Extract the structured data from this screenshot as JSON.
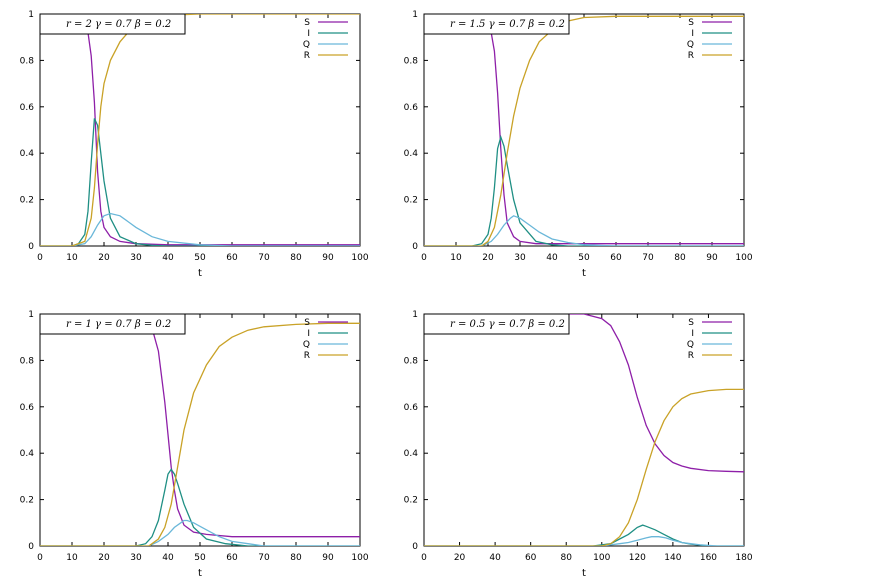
{
  "figure": {
    "panel_count": 4
  },
  "colors": {
    "S": "#8e1fa8",
    "I": "#1f8f84",
    "Q": "#6ab7d9",
    "R": "#c9a227"
  },
  "chart_data": [
    {
      "type": "line",
      "title": "r = 2 γ = 0.7 β = 0.2",
      "xlabel": "t",
      "ylabel": "",
      "xlim": [
        0,
        100
      ],
      "ylim": [
        0,
        1
      ],
      "xticks": [
        0,
        10,
        20,
        30,
        40,
        50,
        60,
        70,
        80,
        90,
        100
      ],
      "yticks": [
        0,
        0.2,
        0.4,
        0.6,
        0.8,
        1
      ],
      "grid": false,
      "legend": "top-right",
      "series": [
        {
          "name": "S",
          "x": [
            0,
            10,
            12,
            14,
            15,
            16,
            17,
            18,
            19,
            20,
            22,
            25,
            30,
            40,
            60,
            100
          ],
          "y": [
            1,
            1,
            0.99,
            0.96,
            0.92,
            0.82,
            0.62,
            0.32,
            0.15,
            0.08,
            0.04,
            0.02,
            0.01,
            0.005,
            0.005,
            0.005
          ]
        },
        {
          "name": "I",
          "x": [
            0,
            10,
            12,
            14,
            15,
            16,
            17,
            18,
            19,
            20,
            22,
            25,
            30,
            35,
            40,
            100
          ],
          "y": [
            0,
            0,
            0.01,
            0.05,
            0.15,
            0.36,
            0.55,
            0.52,
            0.4,
            0.28,
            0.12,
            0.04,
            0.01,
            0.003,
            0,
            0
          ]
        },
        {
          "name": "Q",
          "x": [
            0,
            10,
            14,
            16,
            18,
            20,
            22,
            25,
            30,
            35,
            40,
            50,
            60,
            100
          ],
          "y": [
            0,
            0,
            0.01,
            0.04,
            0.09,
            0.13,
            0.14,
            0.13,
            0.08,
            0.04,
            0.02,
            0.005,
            0,
            0
          ]
        },
        {
          "name": "R",
          "x": [
            0,
            10,
            14,
            16,
            17,
            18,
            19,
            20,
            22,
            25,
            30,
            35,
            40,
            50,
            100
          ],
          "y": [
            0,
            0,
            0.02,
            0.12,
            0.25,
            0.44,
            0.6,
            0.7,
            0.8,
            0.88,
            0.96,
            0.985,
            0.995,
            1,
            1
          ]
        }
      ]
    },
    {
      "type": "line",
      "title": "r = 1.5 γ = 0.7 β = 0.2",
      "xlabel": "t",
      "ylabel": "",
      "xlim": [
        0,
        100
      ],
      "ylim": [
        0,
        1
      ],
      "xticks": [
        0,
        10,
        20,
        30,
        40,
        50,
        60,
        70,
        80,
        90,
        100
      ],
      "yticks": [
        0,
        0.2,
        0.4,
        0.6,
        0.8,
        1
      ],
      "grid": false,
      "legend": "top-right",
      "series": [
        {
          "name": "S",
          "x": [
            0,
            15,
            18,
            20,
            21,
            22,
            23,
            24,
            25,
            26,
            28,
            30,
            35,
            45,
            60,
            100
          ],
          "y": [
            1,
            1,
            0.99,
            0.96,
            0.92,
            0.84,
            0.66,
            0.42,
            0.22,
            0.1,
            0.04,
            0.02,
            0.01,
            0.01,
            0.01,
            0.01
          ]
        },
        {
          "name": "I",
          "x": [
            0,
            15,
            18,
            20,
            21,
            22,
            23,
            24,
            25,
            26,
            28,
            30,
            35,
            40,
            45,
            100
          ],
          "y": [
            0,
            0,
            0.01,
            0.05,
            0.12,
            0.25,
            0.42,
            0.47,
            0.43,
            0.35,
            0.2,
            0.1,
            0.02,
            0.005,
            0,
            0
          ]
        },
        {
          "name": "Q",
          "x": [
            0,
            18,
            21,
            23,
            25,
            27,
            28,
            30,
            33,
            36,
            40,
            45,
            50,
            60,
            100
          ],
          "y": [
            0,
            0,
            0.02,
            0.05,
            0.09,
            0.12,
            0.13,
            0.12,
            0.09,
            0.06,
            0.03,
            0.015,
            0.005,
            0,
            0
          ]
        },
        {
          "name": "R",
          "x": [
            0,
            18,
            20,
            22,
            24,
            26,
            28,
            30,
            33,
            36,
            40,
            45,
            50,
            60,
            70,
            100
          ],
          "y": [
            0,
            0,
            0.02,
            0.08,
            0.22,
            0.4,
            0.56,
            0.68,
            0.8,
            0.88,
            0.93,
            0.97,
            0.985,
            0.99,
            0.99,
            0.99
          ]
        }
      ]
    },
    {
      "type": "line",
      "title": "r = 1 γ = 0.7 β = 0.2",
      "xlabel": "t",
      "ylabel": "",
      "xlim": [
        0,
        100
      ],
      "ylim": [
        0,
        1
      ],
      "xticks": [
        0,
        10,
        20,
        30,
        40,
        50,
        60,
        70,
        80,
        90,
        100
      ],
      "yticks": [
        0,
        0.2,
        0.4,
        0.6,
        0.8,
        1
      ],
      "grid": false,
      "legend": "top-right",
      "series": [
        {
          "name": "S",
          "x": [
            0,
            30,
            33,
            35,
            37,
            39,
            40,
            41,
            42,
            43,
            45,
            48,
            52,
            60,
            100
          ],
          "y": [
            1,
            1,
            0.98,
            0.94,
            0.84,
            0.62,
            0.48,
            0.34,
            0.24,
            0.16,
            0.09,
            0.06,
            0.05,
            0.04,
            0.04
          ]
        },
        {
          "name": "I",
          "x": [
            0,
            30,
            33,
            35,
            37,
            39,
            40,
            41,
            42,
            43,
            45,
            48,
            52,
            58,
            65,
            100
          ],
          "y": [
            0,
            0,
            0.01,
            0.04,
            0.11,
            0.24,
            0.31,
            0.33,
            0.31,
            0.27,
            0.18,
            0.08,
            0.03,
            0.01,
            0,
            0
          ]
        },
        {
          "name": "Q",
          "x": [
            0,
            34,
            37,
            40,
            42,
            44,
            45,
            46,
            48,
            52,
            56,
            60,
            65,
            70,
            100
          ],
          "y": [
            0,
            0,
            0.02,
            0.05,
            0.08,
            0.1,
            0.11,
            0.11,
            0.1,
            0.07,
            0.04,
            0.02,
            0.01,
            0,
            0
          ]
        },
        {
          "name": "R",
          "x": [
            0,
            34,
            37,
            39,
            41,
            43,
            45,
            48,
            52,
            56,
            60,
            65,
            70,
            80,
            90,
            100
          ],
          "y": [
            0,
            0,
            0.03,
            0.08,
            0.18,
            0.34,
            0.5,
            0.66,
            0.78,
            0.86,
            0.9,
            0.93,
            0.945,
            0.955,
            0.96,
            0.96
          ]
        }
      ]
    },
    {
      "type": "line",
      "title": "r = 0.5 γ = 0.7 β = 0.2",
      "xlabel": "t",
      "ylabel": "",
      "xlim": [
        0,
        180
      ],
      "ylim": [
        0,
        1
      ],
      "xticks": [
        0,
        20,
        40,
        60,
        80,
        100,
        120,
        140,
        160,
        180
      ],
      "yticks": [
        0,
        0.2,
        0.4,
        0.6,
        0.8,
        1
      ],
      "grid": false,
      "legend": "top-right",
      "series": [
        {
          "name": "S",
          "x": [
            0,
            90,
            100,
            105,
            110,
            115,
            120,
            125,
            130,
            135,
            140,
            145,
            150,
            160,
            170,
            180
          ],
          "y": [
            1,
            1,
            0.98,
            0.95,
            0.88,
            0.78,
            0.64,
            0.52,
            0.44,
            0.39,
            0.36,
            0.345,
            0.335,
            0.325,
            0.322,
            0.32
          ]
        },
        {
          "name": "I",
          "x": [
            0,
            95,
            105,
            110,
            115,
            120,
            123,
            125,
            130,
            135,
            140,
            145,
            150,
            160,
            180
          ],
          "y": [
            0,
            0,
            0.01,
            0.03,
            0.05,
            0.08,
            0.09,
            0.085,
            0.07,
            0.05,
            0.03,
            0.015,
            0.008,
            0,
            0
          ]
        },
        {
          "name": "Q",
          "x": [
            0,
            100,
            110,
            115,
            120,
            125,
            128,
            132,
            136,
            140,
            145,
            150,
            155,
            165,
            180
          ],
          "y": [
            0,
            0,
            0.01,
            0.015,
            0.025,
            0.035,
            0.04,
            0.04,
            0.035,
            0.025,
            0.015,
            0.01,
            0.005,
            0,
            0
          ]
        },
        {
          "name": "R",
          "x": [
            0,
            100,
            105,
            110,
            115,
            120,
            125,
            130,
            135,
            140,
            145,
            150,
            160,
            170,
            180
          ],
          "y": [
            0,
            0,
            0.01,
            0.04,
            0.1,
            0.2,
            0.33,
            0.45,
            0.54,
            0.6,
            0.635,
            0.655,
            0.67,
            0.675,
            0.675
          ]
        }
      ]
    }
  ]
}
